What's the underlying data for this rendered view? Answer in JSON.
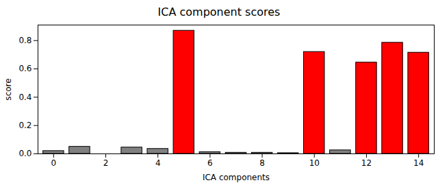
{
  "chart_data": {
    "type": "bar",
    "title": "ICA component scores",
    "x_label": "ICA components",
    "y_label": "score",
    "x": [
      0,
      1,
      2,
      3,
      4,
      5,
      6,
      7,
      8,
      9,
      10,
      11,
      12,
      13,
      14
    ],
    "values": [
      0.02,
      0.05,
      0.0,
      0.045,
      0.035,
      0.87,
      0.012,
      0.008,
      0.008,
      0.005,
      0.72,
      0.025,
      0.645,
      0.785,
      0.715
    ],
    "colors": [
      "#808080",
      "#808080",
      "#808080",
      "#808080",
      "#808080",
      "#ff0000",
      "#808080",
      "#808080",
      "#808080",
      "#808080",
      "#ff0000",
      "#808080",
      "#ff0000",
      "#ff0000",
      "#ff0000"
    ],
    "xlim": [
      -0.6,
      14.6
    ],
    "xticks": [
      0,
      2,
      4,
      6,
      8,
      10,
      12,
      14
    ],
    "ylim": [
      0,
      0.91
    ],
    "yticks": [
      {
        "value": 0,
        "label": "0.0"
      },
      {
        "value": 0.2,
        "label": "0.2"
      },
      {
        "value": 0.4,
        "label": "0.4"
      },
      {
        "value": 0.6,
        "label": "0.6"
      },
      {
        "value": 0.8,
        "label": "0.8"
      }
    ],
    "grid": false
  }
}
